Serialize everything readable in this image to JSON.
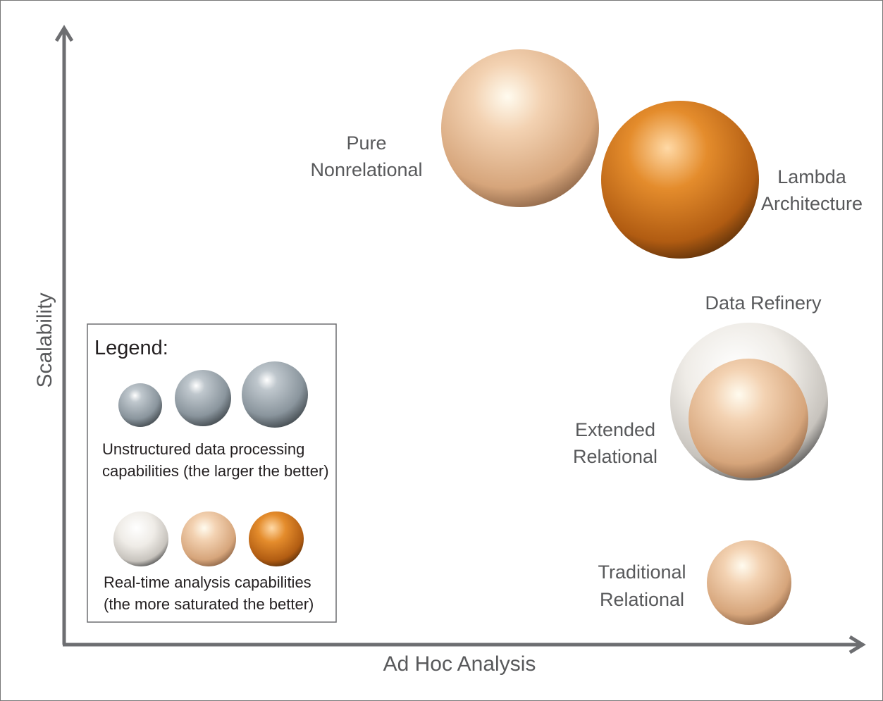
{
  "axes": {
    "x_label": "Ad Hoc Analysis",
    "y_label": "Scalability"
  },
  "nodes": [
    {
      "label": [
        "Pure",
        "Nonrelational"
      ]
    },
    {
      "label": [
        "Lambda",
        "Architecture"
      ]
    },
    {
      "label": [
        "Data Refinery"
      ]
    },
    {
      "label": [
        "Extended",
        "Relational"
      ]
    },
    {
      "label": [
        "Traditional",
        "Relational"
      ]
    }
  ],
  "legend": {
    "title": "Legend:",
    "size_caption": [
      "Unstructured data processing",
      "capabilities (the larger the better)"
    ],
    "color_caption": [
      "Real-time analysis capabilities",
      "(the more saturated the better)"
    ]
  }
}
